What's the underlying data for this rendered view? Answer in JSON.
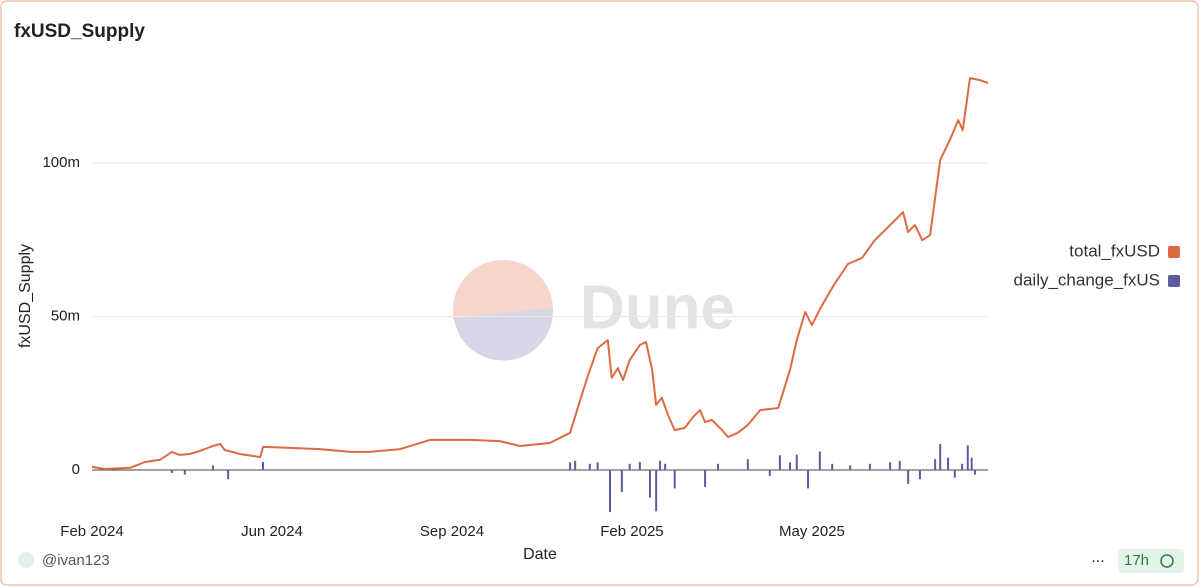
{
  "chart_data": {
    "type": "line_bar",
    "title": "fxUSD_Supply",
    "y_label": "fxUSD_Supply",
    "x_label": "Date",
    "watermark": "Dune",
    "xlim": [
      2024.1,
      2025.693
    ],
    "xticks": [
      {
        "value": 2024.1,
        "label": "Feb 2024"
      },
      {
        "value": 2024.42,
        "label": "Jun 2024"
      },
      {
        "value": 2024.74,
        "label": "Sep 2024"
      },
      {
        "value": 2025.06,
        "label": "Feb 2025"
      },
      {
        "value": 2025.38,
        "label": "May 2025"
      }
    ],
    "ylim": [
      -15000000,
      130000000
    ],
    "yticks": [
      0,
      {
        "value": 50000000,
        "label": "50m"
      },
      {
        "value": 100000000,
        "label": "100m"
      }
    ],
    "grid": true,
    "legend": "right",
    "series": [
      {
        "name": "total_fxUSD",
        "color": "#dd6a43",
        "kind": "line",
        "x": [
          2024.1,
          2024.123,
          2024.168,
          2024.194,
          2024.221,
          2024.242,
          2024.256,
          2024.274,
          2024.292,
          2024.315,
          2024.328,
          2024.336,
          2024.349,
          2024.363,
          2024.399,
          2024.404,
          2024.452,
          2024.505,
          2024.559,
          2024.594,
          2024.648,
          2024.701,
          2024.772,
          2024.825,
          2024.861,
          2024.914,
          2024.95,
          2024.968,
          2024.982,
          2024.999,
          2025.017,
          2025.024,
          2025.035,
          2025.044,
          2025.056,
          2025.074,
          2025.085,
          2025.096,
          2025.103,
          2025.113,
          2025.124,
          2025.136,
          2025.154,
          2025.167,
          2025.181,
          2025.19,
          2025.202,
          2025.22,
          2025.231,
          2025.248,
          2025.266,
          2025.288,
          2025.32,
          2025.341,
          2025.353,
          2025.368,
          2025.38,
          2025.398,
          2025.419,
          2025.444,
          2025.469,
          2025.492,
          2025.519,
          2025.542,
          2025.551,
          2025.563,
          2025.576,
          2025.59,
          2025.608,
          2025.625,
          2025.64,
          2025.648,
          2025.661,
          2025.679,
          2025.693
        ],
        "values": [
          1000000,
          300000,
          700000,
          2600000,
          3300000,
          5900000,
          4900000,
          5200000,
          6200000,
          7800000,
          8500000,
          6500000,
          5900000,
          5200000,
          4200000,
          7500000,
          7200000,
          6800000,
          5900000,
          5900000,
          6800000,
          9800000,
          9800000,
          9400000,
          7800000,
          8800000,
          12100000,
          22800000,
          30900000,
          39700000,
          42300000,
          30000000,
          33200000,
          29300000,
          35800000,
          40700000,
          41700000,
          32600000,
          21200000,
          23500000,
          17900000,
          13000000,
          13700000,
          16900000,
          19500000,
          15600000,
          16300000,
          13000000,
          10700000,
          12100000,
          14700000,
          19500000,
          20200000,
          32600000,
          42300000,
          51500000,
          47200000,
          53700000,
          60300000,
          67100000,
          69100000,
          74900000,
          79800000,
          84000000,
          77500000,
          79800000,
          74900000,
          76500000,
          101000000,
          107500000,
          114000000,
          110700000,
          127700000,
          127000000,
          126100000
        ]
      },
      {
        "name": "daily_change_fxUS",
        "color": "#5b5b9f",
        "kind": "bar",
        "x": [
          2024.242,
          2024.265,
          2024.315,
          2024.342,
          2024.404,
          2024.95,
          2024.959,
          2024.985,
          2024.999,
          2025.021,
          2025.042,
          2025.056,
          2025.074,
          2025.092,
          2025.103,
          2025.11,
          2025.119,
          2025.136,
          2025.19,
          2025.213,
          2025.266,
          2025.305,
          2025.323,
          2025.341,
          2025.353,
          2025.373,
          2025.394,
          2025.416,
          2025.448,
          2025.483,
          2025.519,
          2025.536,
          2025.551,
          2025.572,
          2025.599,
          2025.608,
          2025.622,
          2025.634,
          2025.647,
          2025.657,
          2025.664,
          2025.67
        ],
        "values": [
          -1000000,
          -1500000,
          1500000,
          -3000000,
          2600000,
          2500000,
          3000000,
          2000000,
          2500000,
          -13700000,
          -7200000,
          2000000,
          2600000,
          -9000000,
          -13500000,
          3000000,
          2000000,
          -6000000,
          -5500000,
          2000000,
          3500000,
          -2000000,
          4800000,
          2500000,
          5000000,
          -6000000,
          6000000,
          2000000,
          1500000,
          2000000,
          2500000,
          3000000,
          -4500000,
          -3000000,
          3500000,
          8500000,
          4000000,
          -2500000,
          2000000,
          8000000,
          4000000,
          -1500000
        ]
      }
    ]
  },
  "footer": {
    "user": "@ivan123",
    "menu": "...",
    "age": "17h"
  }
}
